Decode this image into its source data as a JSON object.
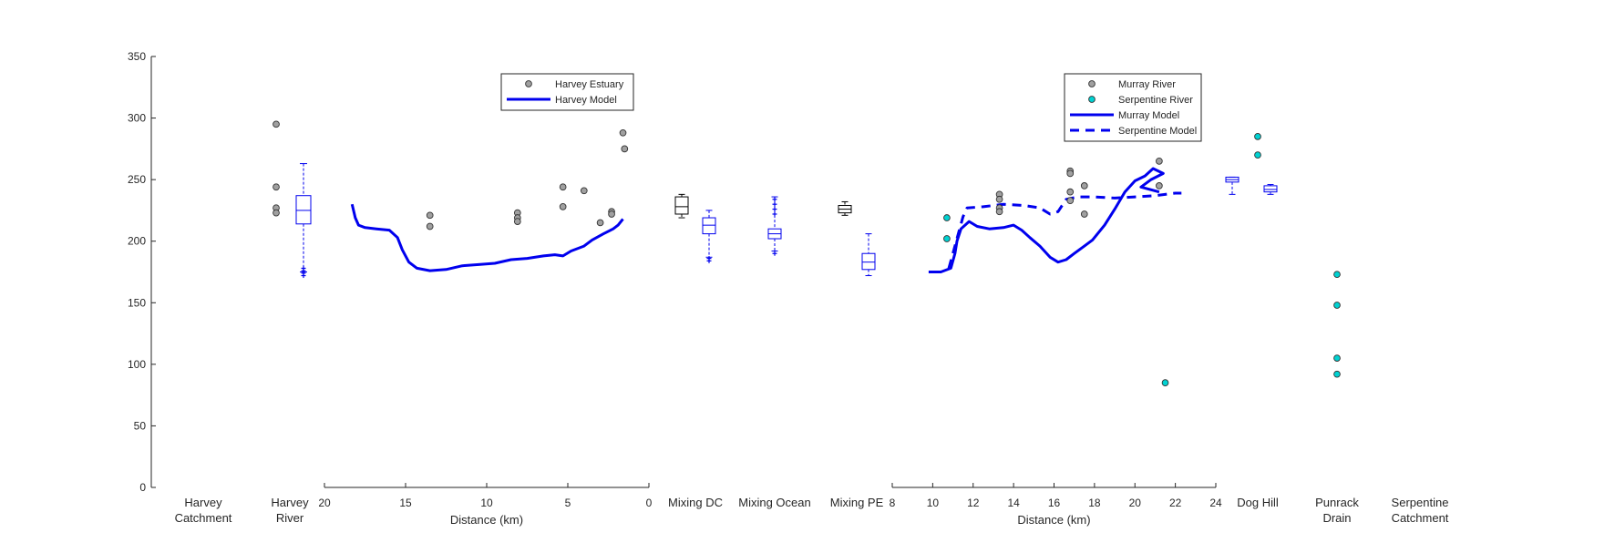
{
  "chart_data": {
    "type": "line",
    "y_axis": {
      "ylim": [
        0,
        350
      ],
      "ticks": [
        "0",
        "50",
        "100",
        "150",
        "200",
        "250",
        "300",
        "350"
      ]
    },
    "categories": [
      {
        "line1": "Harvey",
        "line2": "Catchment"
      },
      {
        "line1": "Harvey",
        "line2": "River"
      },
      {
        "line1": "Mixing DC",
        "line2": ""
      },
      {
        "line1": "Mixing Ocean",
        "line2": ""
      },
      {
        "line1": "Mixing PE",
        "line2": ""
      },
      {
        "line1": "Dog Hill",
        "line2": ""
      },
      {
        "line1": "Punrack",
        "line2": "Drain"
      },
      {
        "line1": "Serpentine",
        "line2": "Catchment"
      }
    ],
    "harvey_panel": {
      "xlabel": "Distance (km)",
      "xlim": [
        20,
        0
      ],
      "ticks": [
        "20",
        "15",
        "10",
        "5",
        "0"
      ],
      "legend": [
        {
          "label": "Harvey Estuary",
          "kind": "marker",
          "color": "#a0a0a0"
        },
        {
          "label": "Harvey Model",
          "kind": "line",
          "color": "#0000ee"
        }
      ],
      "observations": [
        [
          13.5,
          221
        ],
        [
          13.5,
          212
        ],
        [
          8.1,
          223
        ],
        [
          8.1,
          219
        ],
        [
          8.1,
          216
        ],
        [
          5.3,
          244
        ],
        [
          5.3,
          228
        ],
        [
          4.0,
          241
        ],
        [
          3.0,
          215
        ],
        [
          2.3,
          224
        ],
        [
          2.3,
          222
        ],
        [
          1.6,
          288
        ],
        [
          1.5,
          275
        ]
      ],
      "model": [
        [
          18.3,
          230
        ],
        [
          18.1,
          219
        ],
        [
          17.9,
          213
        ],
        [
          17.5,
          211
        ],
        [
          16.8,
          210
        ],
        [
          16.0,
          209
        ],
        [
          15.5,
          203
        ],
        [
          15.2,
          193
        ],
        [
          14.8,
          183
        ],
        [
          14.3,
          178
        ],
        [
          13.5,
          176
        ],
        [
          12.5,
          177
        ],
        [
          11.5,
          180
        ],
        [
          10.5,
          181
        ],
        [
          9.5,
          182
        ],
        [
          8.5,
          185
        ],
        [
          7.5,
          186
        ],
        [
          6.5,
          188
        ],
        [
          5.8,
          189
        ],
        [
          5.3,
          188
        ],
        [
          4.8,
          192
        ],
        [
          4.0,
          196
        ],
        [
          3.5,
          201
        ],
        [
          2.8,
          206
        ],
        [
          2.2,
          210
        ],
        [
          1.9,
          213
        ],
        [
          1.6,
          218
        ]
      ]
    },
    "murray_panel": {
      "xlabel": "Distance (km)",
      "xlim": [
        8,
        24
      ],
      "ticks": [
        "8",
        "10",
        "12",
        "14",
        "16",
        "18",
        "20",
        "22",
        "24"
      ],
      "legend": [
        {
          "label": "Murray River",
          "kind": "marker",
          "color": "#a0a0a0"
        },
        {
          "label": "Serpentine River",
          "kind": "marker",
          "color": "#00d2d2"
        },
        {
          "label": "Murray Model",
          "kind": "line",
          "color": "#0000ee"
        },
        {
          "label": "Serpentine Model",
          "kind": "dashed",
          "color": "#0000ee"
        }
      ],
      "murray_observations": [
        [
          13.3,
          238
        ],
        [
          13.3,
          234
        ],
        [
          13.3,
          227
        ],
        [
          13.3,
          224
        ],
        [
          16.8,
          257
        ],
        [
          16.8,
          255
        ],
        [
          16.8,
          240
        ],
        [
          16.8,
          233
        ],
        [
          17.5,
          245
        ],
        [
          17.5,
          222
        ],
        [
          21.2,
          265
        ],
        [
          21.2,
          245
        ]
      ],
      "serpentine_observations": [
        [
          10.7,
          219
        ],
        [
          10.7,
          202
        ],
        [
          21.5,
          85
        ]
      ],
      "murray_model": [
        [
          9.8,
          175
        ],
        [
          10.4,
          175
        ],
        [
          10.9,
          178
        ],
        [
          11.1,
          190
        ],
        [
          11.2,
          200
        ],
        [
          11.4,
          210
        ],
        [
          11.8,
          216
        ],
        [
          12.2,
          212
        ],
        [
          12.8,
          210
        ],
        [
          13.5,
          211
        ],
        [
          14.0,
          213
        ],
        [
          14.4,
          209
        ],
        [
          14.8,
          203
        ],
        [
          15.3,
          196
        ],
        [
          15.8,
          187
        ],
        [
          16.2,
          183
        ],
        [
          16.6,
          185
        ],
        [
          17.0,
          190
        ],
        [
          17.5,
          196
        ],
        [
          17.9,
          201
        ],
        [
          18.5,
          213
        ],
        [
          19.0,
          226
        ],
        [
          19.5,
          240
        ],
        [
          20.0,
          249
        ],
        [
          20.5,
          253
        ],
        [
          20.9,
          259
        ],
        [
          21.4,
          255
        ],
        [
          20.8,
          250
        ],
        [
          20.3,
          244
        ],
        [
          21.2,
          240
        ]
      ],
      "serpentine_model": [
        [
          10.8,
          178
        ],
        [
          11.3,
          208
        ],
        [
          11.5,
          220
        ],
        [
          11.7,
          227
        ],
        [
          12.5,
          228
        ],
        [
          13.5,
          230
        ],
        [
          14.5,
          229
        ],
        [
          15.3,
          227
        ],
        [
          15.8,
          222
        ],
        [
          16.2,
          224
        ],
        [
          16.6,
          234
        ],
        [
          17.2,
          236
        ],
        [
          18.0,
          236
        ],
        [
          19.0,
          235
        ],
        [
          20.0,
          236
        ],
        [
          21.0,
          237
        ],
        [
          22.0,
          239
        ],
        [
          22.3,
          239
        ]
      ]
    },
    "boxplots": [
      {
        "slot": "Harvey River",
        "color": "#0000ee",
        "q1": 214,
        "median": 225,
        "q3": 237,
        "whisker_low": 175,
        "whisker_high": 263
      },
      {
        "slot": "Mixing DC",
        "color": "#000000",
        "q1": 222,
        "median": 228,
        "q3": 236,
        "whisker_low": 219,
        "whisker_high": 238
      },
      {
        "slot": "Mixing DC",
        "color": "#0000ee",
        "q1": 206,
        "median": 213,
        "q3": 219,
        "whisker_low": 187,
        "whisker_high": 225
      },
      {
        "slot": "Mixing Ocean",
        "color": "#0000ee",
        "q1": 202,
        "median": 206,
        "q3": 210,
        "whisker_low": 192,
        "whisker_high": 236
      },
      {
        "slot": "Mixing PE",
        "color": "#000000",
        "q1": 223,
        "median": 226,
        "q3": 229,
        "whisker_low": 221,
        "whisker_high": 232
      },
      {
        "slot": "Mixing PE",
        "color": "#0000ee",
        "q1": 177,
        "median": 183,
        "q3": 190,
        "whisker_low": 172,
        "whisker_high": 206
      },
      {
        "slot": "Dog Hill",
        "color": "#0000ee",
        "q1": 248,
        "median": 250,
        "q3": 252,
        "whisker_low": 238,
        "whisker_high": 252
      },
      {
        "slot": "Dog Hill",
        "color": "#0000ee",
        "q1": 240,
        "median": 242,
        "q3": 245,
        "whisker_low": 238,
        "whisker_high": 246
      }
    ],
    "boxplot_outliers": [
      {
        "slot": "Harvey River",
        "color": "#0000ee",
        "values": [
          178,
          176,
          174,
          172
        ]
      },
      {
        "slot": "Mixing DC",
        "color": "#0000ee",
        "values": [
          186,
          184
        ]
      },
      {
        "slot": "Mixing Ocean",
        "color": "#0000ee",
        "values": [
          234,
          230,
          226,
          222,
          190
        ]
      }
    ],
    "category_observations": [
      {
        "slot": "Harvey River",
        "color": "#a0a0a0",
        "values": [
          295,
          244,
          227,
          223
        ]
      },
      {
        "slot": "Dog Hill",
        "color": "#00d2d2",
        "values": [
          285,
          270
        ]
      },
      {
        "slot": "Punrack Drain",
        "color": "#00d2d2",
        "values": [
          173,
          148,
          105,
          92
        ]
      }
    ]
  }
}
